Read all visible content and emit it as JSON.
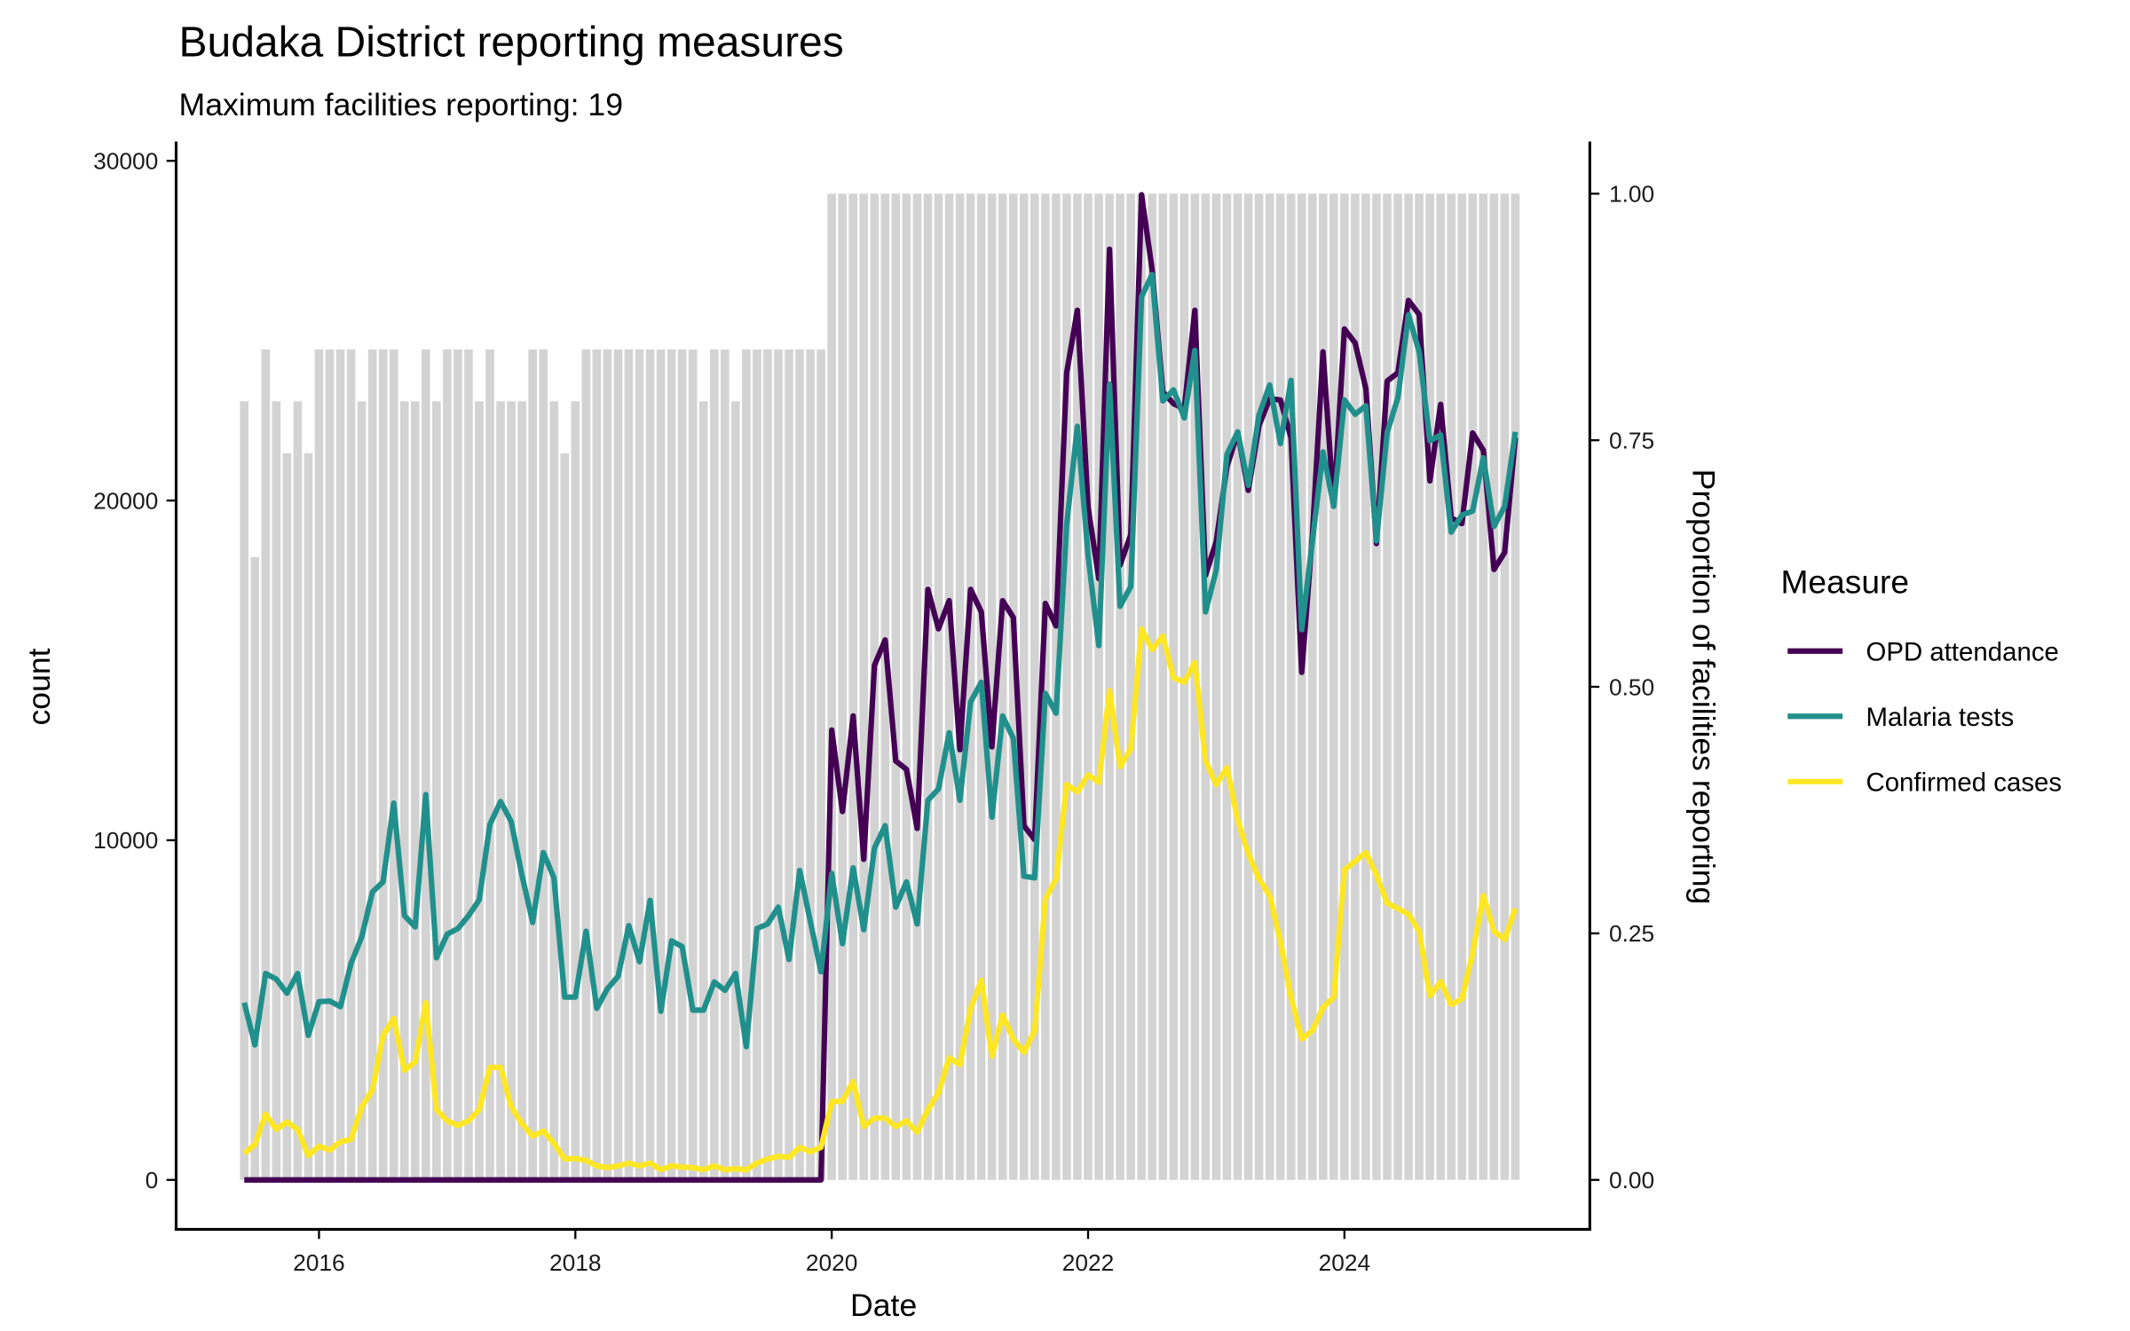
{
  "chart_data": {
    "type": "line",
    "title": "Budaka District reporting measures",
    "subtitle": "Maximum facilities reporting: 19",
    "xlabel": "Date",
    "ylabel": "count",
    "ylabel_right": "Proportion of facilities reporting",
    "ylim": [
      -1500,
      30500
    ],
    "ylim_right": [
      -0.05,
      1.05
    ],
    "xticks": [
      "2016",
      "2018",
      "2020",
      "2022",
      "2024"
    ],
    "yticks_left": [
      "0",
      "10000",
      "20000",
      "30000"
    ],
    "yticks_right": [
      "0.00",
      "0.25",
      "0.50",
      "0.75",
      "1.00"
    ],
    "grid": false,
    "legend": {
      "title": "Measure",
      "placement": "right"
    },
    "max_facilities": 19,
    "x": [
      "2015-06",
      "2015-07",
      "2015-08",
      "2015-09",
      "2015-10",
      "2015-11",
      "2015-12",
      "2016-01",
      "2016-02",
      "2016-03",
      "2016-04",
      "2016-05",
      "2016-06",
      "2016-07",
      "2016-08",
      "2016-09",
      "2016-10",
      "2016-11",
      "2016-12",
      "2017-01",
      "2017-02",
      "2017-03",
      "2017-04",
      "2017-05",
      "2017-06",
      "2017-07",
      "2017-08",
      "2017-09",
      "2017-10",
      "2017-11",
      "2017-12",
      "2018-01",
      "2018-02",
      "2018-03",
      "2018-04",
      "2018-05",
      "2018-06",
      "2018-07",
      "2018-08",
      "2018-09",
      "2018-10",
      "2018-11",
      "2018-12",
      "2019-01",
      "2019-02",
      "2019-03",
      "2019-04",
      "2019-05",
      "2019-06",
      "2019-07",
      "2019-08",
      "2019-09",
      "2019-10",
      "2019-11",
      "2019-12",
      "2020-01",
      "2020-02",
      "2020-03",
      "2020-04",
      "2020-05",
      "2020-06",
      "2020-07",
      "2020-08",
      "2020-09",
      "2020-10",
      "2020-11",
      "2020-12",
      "2021-01",
      "2021-02",
      "2021-03",
      "2021-04",
      "2021-05",
      "2021-06",
      "2021-07",
      "2021-08",
      "2021-09",
      "2021-10",
      "2021-11",
      "2021-12",
      "2022-01",
      "2022-02",
      "2022-03",
      "2022-04",
      "2022-05",
      "2022-06",
      "2022-07",
      "2022-08",
      "2022-09",
      "2022-10",
      "2022-11",
      "2022-12",
      "2023-01",
      "2023-02",
      "2023-03",
      "2023-04",
      "2023-05",
      "2023-06",
      "2023-07",
      "2023-08",
      "2023-09",
      "2023-10",
      "2023-11",
      "2023-12",
      "2024-01",
      "2024-02",
      "2024-03",
      "2024-04",
      "2024-05",
      "2024-06",
      "2024-07",
      "2024-08",
      "2024-09",
      "2024-10",
      "2024-11",
      "2024-12",
      "2025-01",
      "2025-02",
      "2025-03",
      "2025-04",
      "2025-05"
    ],
    "facilities_reporting": [
      15,
      12,
      16,
      15,
      14,
      15,
      14,
      16,
      16,
      16,
      16,
      15,
      16,
      16,
      16,
      15,
      15,
      16,
      15,
      16,
      16,
      16,
      15,
      16,
      15,
      15,
      15,
      16,
      16,
      15,
      14,
      15,
      16,
      16,
      16,
      16,
      16,
      16,
      16,
      16,
      16,
      16,
      16,
      15,
      16,
      16,
      15,
      16,
      16,
      16,
      16,
      16,
      16,
      16,
      16,
      19,
      19,
      19,
      19,
      19,
      19,
      19,
      19,
      19,
      19,
      19,
      19,
      19,
      19,
      19,
      19,
      19,
      19,
      19,
      19,
      19,
      19,
      19,
      19,
      19,
      19,
      19,
      19,
      19,
      19,
      19,
      19,
      19,
      19,
      19,
      19,
      19,
      19,
      19,
      19,
      19,
      19,
      19,
      19,
      19,
      19,
      19,
      19,
      19,
      19,
      19,
      19,
      19,
      19,
      19,
      19,
      19,
      19,
      19,
      19,
      19,
      19,
      19,
      19,
      19,
      19,
      19,
      19,
      19,
      19,
      19,
      19,
      19,
      19,
      19,
      19,
      19,
      19,
      19,
      19,
      19,
      19,
      19,
      19,
      19
    ],
    "series": [
      {
        "name": "OPD attendance",
        "color": "#440154",
        "values": [
          0,
          0,
          0,
          0,
          0,
          0,
          0,
          0,
          0,
          0,
          0,
          0,
          0,
          0,
          0,
          0,
          0,
          0,
          0,
          0,
          0,
          0,
          0,
          0,
          0,
          0,
          0,
          0,
          0,
          0,
          0,
          0,
          0,
          0,
          0,
          0,
          0,
          0,
          0,
          0,
          0,
          0,
          0,
          0,
          0,
          0,
          0,
          0,
          0,
          0,
          0,
          0,
          0,
          0,
          0,
          13245,
          10844,
          13659,
          9437,
          15149,
          15894,
          12334,
          12086,
          10348,
          17384,
          16225,
          17053,
          12666,
          17384,
          16722,
          12748,
          17053,
          16556,
          10430,
          10017,
          16970,
          16308,
          23758,
          25600,
          19800,
          17700,
          27400,
          18100,
          19000,
          29000,
          26800,
          23200,
          22850,
          22700,
          25600,
          17800,
          18800,
          21000,
          22000,
          20300,
          22200,
          23000,
          22960,
          21850,
          14940,
          19000,
          24380,
          19830,
          25050,
          24640,
          23290,
          18730,
          23520,
          23760,
          25890,
          25480,
          20580,
          22830,
          19490,
          19320,
          21990,
          21480,
          17970,
          18470,
          21850
        ]
      },
      {
        "name": "Malaria tests",
        "color": "#21908C",
        "values": [
          5215,
          3974,
          6076,
          5911,
          5497,
          6076,
          4255,
          5248,
          5265,
          5099,
          6374,
          7152,
          8477,
          8775,
          11093,
          7781,
          7450,
          11341,
          6540,
          7235,
          7401,
          7781,
          8245,
          10464,
          11142,
          10546,
          8974,
          7583,
          9636,
          8891,
          5381,
          5381,
          7318,
          5050,
          5629,
          5993,
          7483,
          6424,
          8228,
          4967,
          7036,
          6871,
          5000,
          5000,
          5828,
          5579,
          6076,
          3924,
          7401,
          7533,
          8030,
          6490,
          9106,
          7616,
          6126,
          9023,
          6954,
          9189,
          7368,
          9768,
          10430,
          8030,
          8775,
          7533,
          11175,
          11507,
          13162,
          11175,
          14073,
          14652,
          10679,
          13659,
          12997,
          8940,
          8891,
          14321,
          13742,
          19288,
          22185,
          18377,
          15728,
          23427,
          16887,
          17467,
          26000,
          26650,
          22930,
          23260,
          22430,
          24420,
          16720,
          17960,
          21360,
          22020,
          20450,
          22520,
          23400,
          21680,
          23540,
          16200,
          18810,
          21430,
          19830,
          22960,
          22540,
          22790,
          18810,
          22000,
          23030,
          25470,
          24370,
          21760,
          21930,
          19070,
          19570,
          19690,
          21260,
          19240,
          19830,
          22020
        ]
      },
      {
        "name": "Confirmed cases",
        "color": "#FDE725",
        "values": [
          778,
          1043,
          1937,
          1490,
          1705,
          1490,
          712,
          993,
          877,
          1126,
          1192,
          2152,
          2649,
          4255,
          4752,
          3228,
          3477,
          5215,
          2070,
          1738,
          1606,
          1738,
          2070,
          3311,
          3311,
          2152,
          1656,
          1291,
          1440,
          1076,
          613,
          629,
          579,
          414,
          364,
          414,
          497,
          414,
          497,
          298,
          414,
          381,
          364,
          298,
          414,
          298,
          331,
          298,
          497,
          613,
          695,
          662,
          960,
          828,
          960,
          2300,
          2318,
          2897,
          1573,
          1821,
          1821,
          1573,
          1738,
          1407,
          2070,
          2566,
          3593,
          3394,
          5050,
          5877,
          3642,
          4851,
          4139,
          3758,
          4387,
          8278,
          8858,
          11639,
          11424,
          11921,
          11705,
          14404,
          12169,
          12699,
          16225,
          15613,
          16010,
          14785,
          14652,
          15232,
          12334,
          11639,
          12136,
          10596,
          9603,
          8858,
          8370,
          7020,
          5380,
          4150,
          4400,
          5080,
          5380,
          9130,
          9380,
          9640,
          8980,
          8150,
          7990,
          7820,
          7320,
          5420,
          5840,
          5160,
          5330,
          6680,
          8370,
          7320,
          7080,
          7990
        ]
      }
    ],
    "bar_color": "#D3D3D3"
  }
}
